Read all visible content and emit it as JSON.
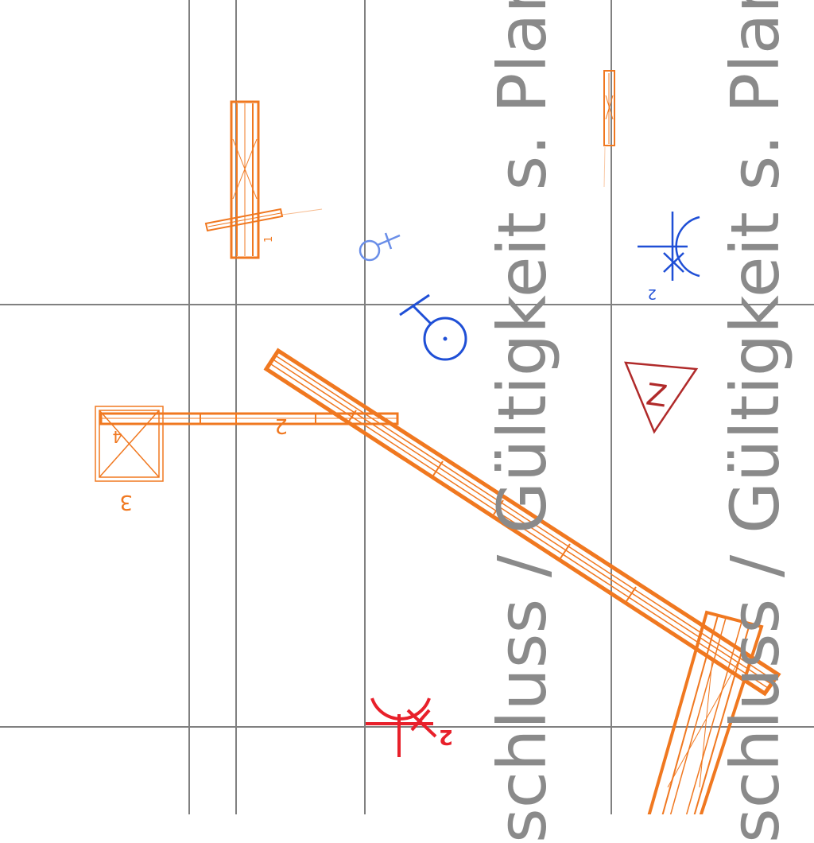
{
  "watermark": {
    "line_1": "schluss / Gültigkeit s. Plannu",
    "line_2": "schluss / Gültigkeit s. Plannu"
  },
  "labels": {
    "n1": "1",
    "n2_orange": "2",
    "n2_blue": "2",
    "n2_red": "2",
    "n3": "3",
    "n4": "4",
    "z_marker": "Z"
  },
  "colors": {
    "grid": "#808080",
    "structure": "#f07820",
    "symbol_blue": "#1f4fd6",
    "symbol_red": "#e8202a",
    "marker_dark_red": "#b02a2a",
    "watermark": "#8a8a8a"
  }
}
